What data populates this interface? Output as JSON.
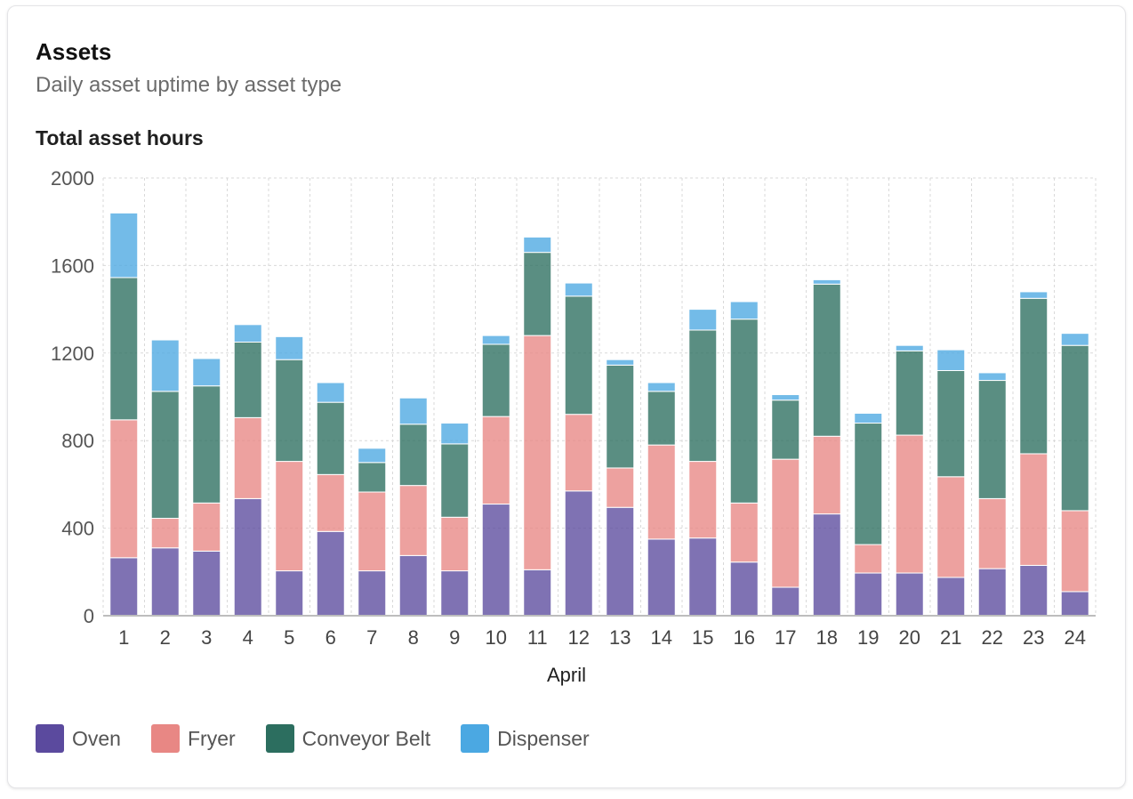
{
  "card": {
    "title": "Assets",
    "subtitle": "Daily asset uptime by asset type"
  },
  "chart_data": {
    "type": "bar",
    "stacked": true,
    "title": "Total asset hours",
    "xlabel": "April",
    "ylabel": "",
    "ylim": [
      0,
      2000
    ],
    "yticks": [
      0,
      400,
      800,
      1200,
      1600,
      2000
    ],
    "grid": true,
    "legend_position": "bottom-left",
    "categories": [
      "1",
      "2",
      "3",
      "4",
      "5",
      "6",
      "7",
      "8",
      "9",
      "10",
      "11",
      "12",
      "13",
      "14",
      "15",
      "16",
      "17",
      "18",
      "19",
      "20",
      "21",
      "22",
      "23",
      "24"
    ],
    "series": [
      {
        "name": "Oven",
        "color": "#5b4a9e",
        "values": [
          265,
          310,
          295,
          535,
          205,
          385,
          205,
          275,
          205,
          510,
          210,
          570,
          495,
          350,
          355,
          245,
          130,
          465,
          195,
          195,
          175,
          215,
          230,
          110
        ]
      },
      {
        "name": "Fryer",
        "color": "#e88784",
        "values": [
          630,
          135,
          220,
          370,
          500,
          260,
          360,
          320,
          245,
          400,
          1070,
          350,
          180,
          430,
          350,
          270,
          585,
          355,
          130,
          630,
          460,
          320,
          510,
          370
        ]
      },
      {
        "name": "Conveyor Belt",
        "color": "#2c6e5f",
        "values": [
          650,
          580,
          535,
          345,
          465,
          330,
          135,
          280,
          335,
          330,
          380,
          540,
          470,
          245,
          600,
          840,
          270,
          695,
          555,
          385,
          485,
          540,
          710,
          755
        ]
      },
      {
        "name": "Dispenser",
        "color": "#4ba8e2",
        "values": [
          295,
          235,
          125,
          80,
          105,
          90,
          65,
          120,
          95,
          40,
          70,
          60,
          25,
          40,
          95,
          80,
          25,
          20,
          45,
          25,
          95,
          35,
          30,
          55
        ]
      }
    ]
  }
}
